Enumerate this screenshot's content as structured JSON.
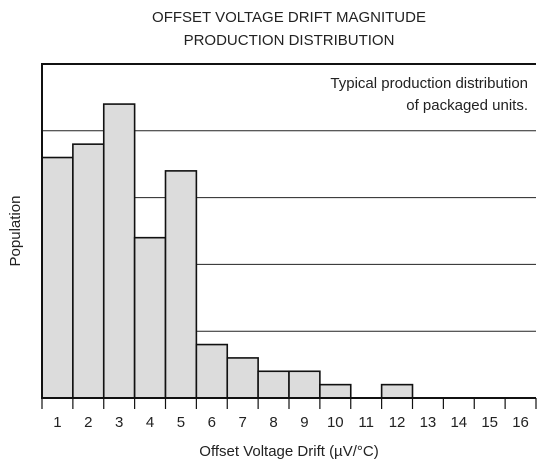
{
  "chart_data": {
    "type": "bar",
    "title": [
      "OFFSET VOLTAGE DRIFT MAGNITUDE",
      "PRODUCTION DISTRIBUTION"
    ],
    "annotation": [
      "Typical production distribution",
      "of packaged units."
    ],
    "xlabel": "Offset Voltage Drift (µV/°C)",
    "ylabel": "Population",
    "categories": [
      "1",
      "2",
      "3",
      "4",
      "5",
      "6",
      "7",
      "8",
      "9",
      "10",
      "11",
      "12",
      "13",
      "14",
      "15",
      "16"
    ],
    "values": [
      3.6,
      3.8,
      4.4,
      2.4,
      3.4,
      0.8,
      0.6,
      0.4,
      0.4,
      0.2,
      0,
      0.2,
      0,
      0,
      0,
      0
    ],
    "color": "#dcdcdc",
    "ylim": [
      0,
      5
    ],
    "grid_lines": [
      1,
      2,
      3,
      4
    ],
    "grid": true
  }
}
